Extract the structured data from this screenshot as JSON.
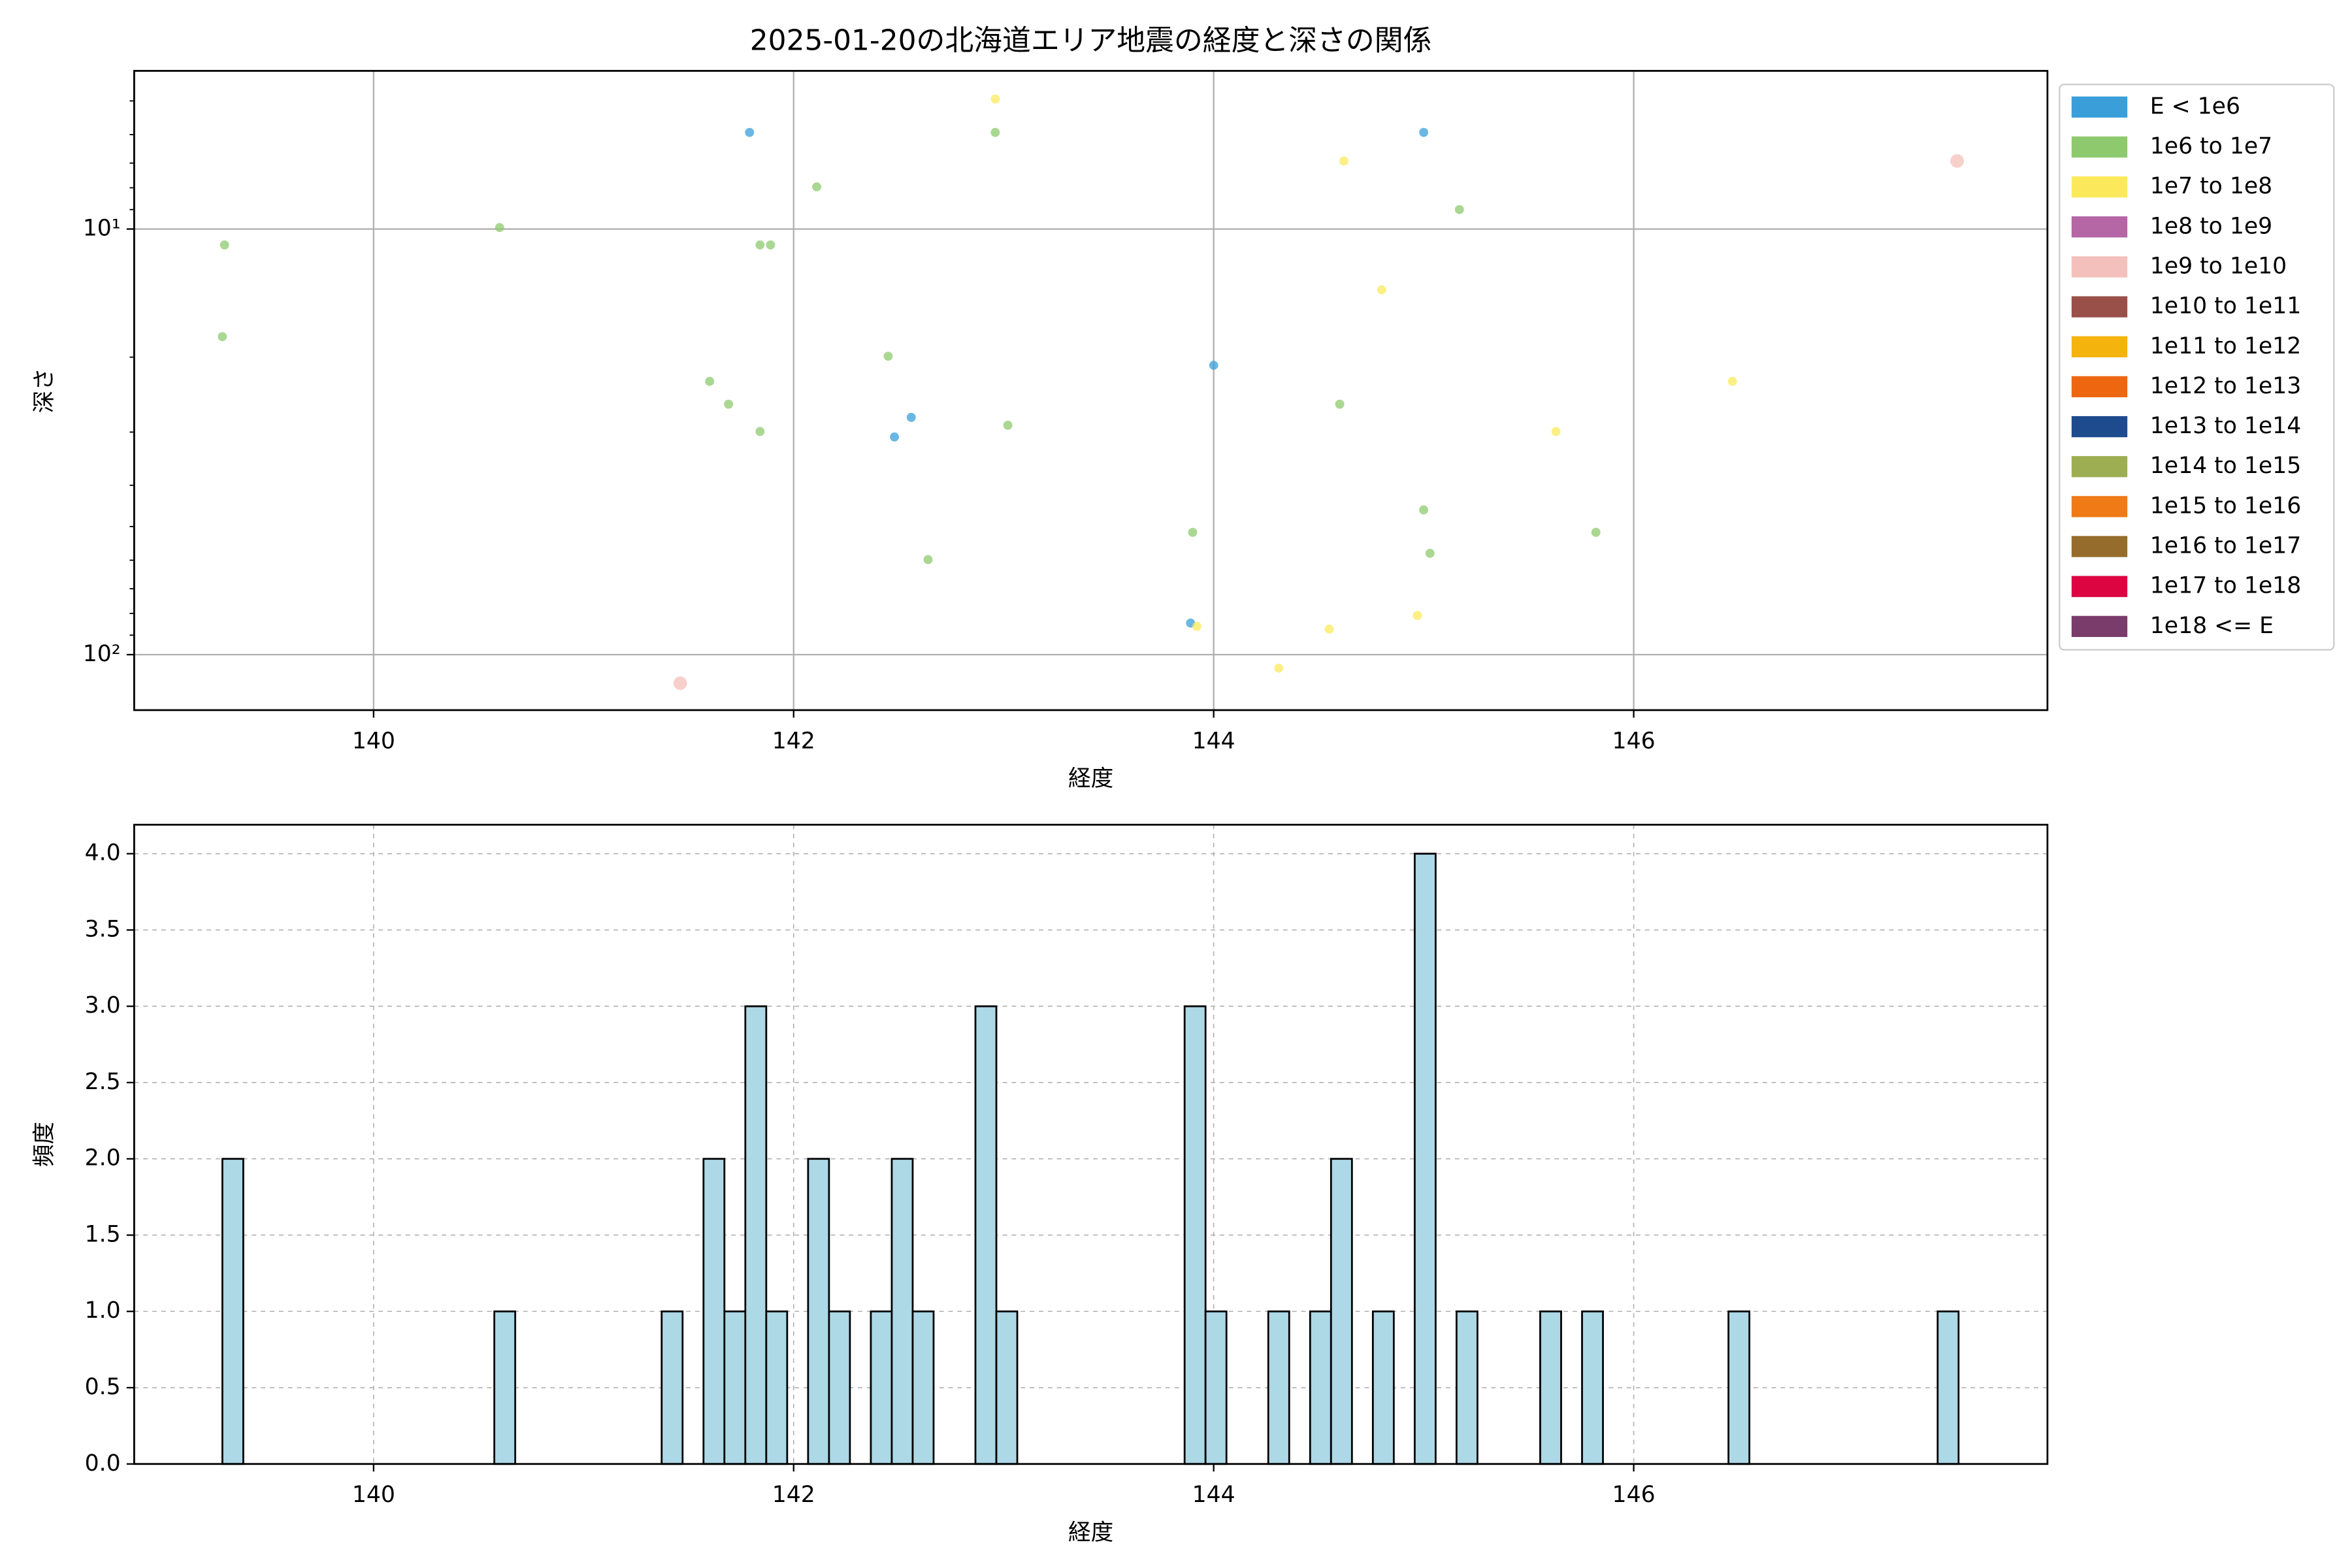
{
  "chart_data": [
    {
      "type": "scatter",
      "title": "2025-01-20の北海道エリア地震の経度と深さの関係",
      "x_label": "経度",
      "y_label": "深さ",
      "xlim": [
        138.86,
        147.97
      ],
      "xticks": [
        140,
        142,
        144,
        146
      ],
      "ylim": [
        135,
        4.25
      ],
      "yscale": "log",
      "yticks": [
        {
          "value": 10,
          "label": "10¹"
        },
        {
          "value": 100,
          "label": "10²"
        }
      ],
      "yminorticks": [
        5,
        6,
        7,
        8,
        9,
        20,
        30,
        40,
        50,
        60,
        70,
        80,
        90
      ],
      "grid": true,
      "legend": "outside right",
      "series": [
        {
          "name": "E < 1e6",
          "color": "#3a9fd9",
          "x": [
            141.79,
            145.0,
            144.0,
            142.56,
            142.48,
            143.89
          ],
          "values": [
            5.93,
            5.93,
            20.9,
            27.7,
            30.8,
            84.3
          ]
        },
        {
          "name": "1e6 to 1e7",
          "color": "#8ec96e",
          "x": [
            139.29,
            139.28,
            140.6,
            142.96,
            142.11,
            141.84,
            141.89,
            141.6,
            141.69,
            141.84,
            142.45,
            143.02,
            142.64,
            143.9,
            144.6,
            145.17,
            145.0,
            145.03,
            145.82
          ],
          "values": [
            10.9,
            17.9,
            9.92,
            5.93,
            7.96,
            10.9,
            10.9,
            22.8,
            25.8,
            29.9,
            19.9,
            28.9,
            59.8,
            51.6,
            25.8,
            9.0,
            45.7,
            57.8,
            51.6
          ]
        },
        {
          "name": "1e7 to 1e8",
          "color": "#fbe95b",
          "x": [
            142.96,
            144.62,
            144.8,
            146.47,
            145.63,
            143.92,
            144.55,
            144.97,
            144.31
          ],
          "values": [
            4.95,
            6.92,
            13.9,
            22.8,
            29.9,
            85.8,
            87.1,
            80.9,
            107.6
          ]
        },
        {
          "name": "1e8 to 1e9",
          "color": "#b466a5",
          "x": [],
          "values": []
        },
        {
          "name": "1e9 to 1e10",
          "color": "#f4c0bb",
          "x": [
            147.54,
            141.46
          ],
          "values": [
            6.92,
            116.7
          ]
        },
        {
          "name": "1e10 to 1e11",
          "color": "#995048",
          "x": [],
          "values": []
        },
        {
          "name": "1e11 to 1e12",
          "color": "#f5b30e",
          "x": [],
          "values": []
        },
        {
          "name": "1e12 to 1e13",
          "color": "#ee6610",
          "x": [],
          "values": []
        },
        {
          "name": "1e13 to 1e14",
          "color": "#1e4a8e",
          "x": [],
          "values": []
        },
        {
          "name": "1e14 to 1e15",
          "color": "#9dae52",
          "x": [],
          "values": []
        },
        {
          "name": "1e15 to 1e16",
          "color": "#f07a16",
          "x": [],
          "values": []
        },
        {
          "name": "1e16 to 1e17",
          "color": "#956c2c",
          "x": [],
          "values": []
        },
        {
          "name": "1e17 to 1e18",
          "color": "#dc0541",
          "x": [],
          "values": []
        },
        {
          "name": "1e18 <= E",
          "color": "#793c6b",
          "x": [],
          "values": []
        }
      ]
    },
    {
      "type": "histogram",
      "x_label": "経度",
      "y_label": "頻度",
      "xlim": [
        138.86,
        147.97
      ],
      "xticks": [
        140,
        142,
        144,
        146
      ],
      "ylim": [
        0,
        4.19
      ],
      "yticks": [
        {
          "value": 0,
          "label": "0.0"
        },
        {
          "value": 0.5,
          "label": "0.5"
        },
        {
          "value": 1,
          "label": "1.0"
        },
        {
          "value": 1.5,
          "label": "1.5"
        },
        {
          "value": 2,
          "label": "2.0"
        },
        {
          "value": 2.5,
          "label": "2.5"
        },
        {
          "value": 3,
          "label": "3.0"
        },
        {
          "value": 3.5,
          "label": "3.5"
        },
        {
          "value": 4,
          "label": "4.0"
        }
      ],
      "grid": true,
      "color": "#add8e6",
      "edgecolor": "#000000",
      "bins": [
        139.28,
        139.3796,
        139.4792,
        139.5788,
        139.6784,
        139.778,
        139.8776,
        139.9772,
        140.0768,
        140.1764,
        140.276,
        140.3756,
        140.4752,
        140.5748,
        140.6744,
        140.774,
        140.8736,
        140.9732,
        141.0728,
        141.1724,
        141.272,
        141.3716,
        141.4712,
        141.5708,
        141.6704,
        141.77,
        141.8696,
        141.9692,
        142.0688,
        142.1684,
        142.268,
        142.3676,
        142.4672,
        142.5668,
        142.6664,
        142.766,
        142.8656,
        142.9652,
        143.0648,
        143.1644,
        143.264,
        143.3636,
        143.4632,
        143.5628,
        143.6624,
        143.762,
        143.8616,
        143.9612,
        144.0608,
        144.1604,
        144.26,
        144.3596,
        144.4592,
        144.5588,
        144.6584,
        144.758,
        144.8576,
        144.9572,
        145.0568,
        145.1564,
        145.256,
        145.3556,
        145.4552,
        145.5548,
        145.6544,
        145.754,
        145.8536,
        145.9532,
        146.0528,
        146.1524,
        146.252,
        146.3516,
        146.4512,
        146.5508,
        146.6504,
        146.75,
        146.8496,
        146.9492,
        147.0488,
        147.1484,
        147.248,
        147.3476,
        147.4472,
        147.5468
      ],
      "values": [
        2,
        0,
        0,
        0,
        0,
        0,
        0,
        0,
        0,
        0,
        0,
        0,
        0,
        1,
        0,
        0,
        0,
        0,
        0,
        0,
        0,
        1,
        0,
        2,
        1,
        3,
        1,
        0,
        2,
        1,
        0,
        1,
        2,
        1,
        0,
        0,
        3,
        1,
        0,
        0,
        0,
        0,
        0,
        0,
        0,
        0,
        3,
        1,
        0,
        0,
        1,
        0,
        1,
        2,
        0,
        1,
        0,
        4,
        0,
        1,
        0,
        0,
        0,
        1,
        0,
        1,
        0,
        0,
        0,
        0,
        0,
        0,
        1,
        0,
        0,
        0,
        0,
        0,
        0,
        0,
        0,
        0,
        1
      ]
    }
  ]
}
